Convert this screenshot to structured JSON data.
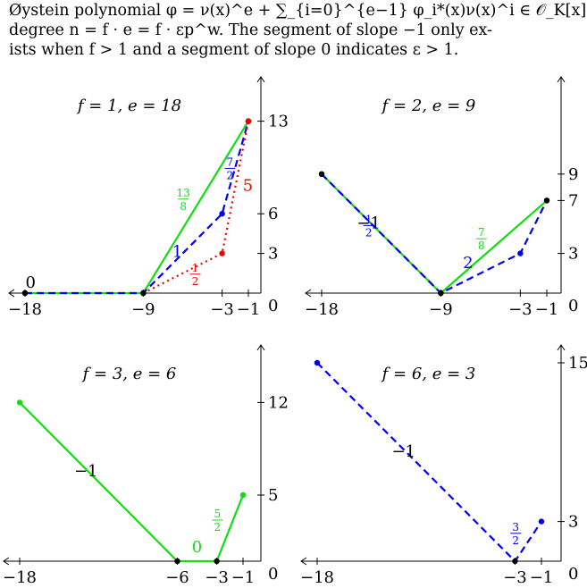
{
  "caption": {
    "line1": "Øystein polynomial φ = ν(x)^e + ∑_{i=0}^{e−1} φ_i*(x)ν(x)^i ∈ 𝒪_K[x] of",
    "line2": "degree n = f · e = f · εp^w. The segment of slope −1 only ex-",
    "line3": "ists when f > 1 and a segment of slope 0 indicates ε > 1."
  },
  "colors": {
    "green": "#11dd11",
    "blue": "#0000ee",
    "red": "#ee0000",
    "black": "#000000"
  },
  "chart_data": [
    {
      "type": "line",
      "title": "f = 1, e = 18",
      "x_ticks": [
        -18,
        -9,
        -3,
        -1
      ],
      "y_ticks": [
        0,
        3,
        6,
        13
      ],
      "xlim": [
        -18,
        -1
      ],
      "ylim": [
        0,
        13
      ],
      "series": [
        {
          "color": "green",
          "style": "solid",
          "points": [
            [
              -18,
              0
            ],
            [
              -9,
              0
            ],
            [
              -1,
              13
            ]
          ],
          "slope_labels": [
            "0",
            "13/8"
          ]
        },
        {
          "color": "blue",
          "style": "dashed",
          "points": [
            [
              -18,
              0
            ],
            [
              -9,
              0
            ],
            [
              -3,
              6
            ],
            [
              -1,
              13
            ]
          ],
          "slope_labels": [
            "1",
            "7/2"
          ]
        },
        {
          "color": "red",
          "style": "dotted",
          "points": [
            [
              -9,
              0
            ],
            [
              -3,
              3
            ],
            [
              -1,
              13
            ]
          ],
          "slope_labels": [
            "1/2",
            "5"
          ]
        }
      ]
    },
    {
      "type": "line",
      "title": "f = 2, e = 9",
      "x_ticks": [
        -18,
        -9,
        -3,
        -1
      ],
      "y_ticks": [
        0,
        3,
        7,
        9
      ],
      "xlim": [
        -18,
        -1
      ],
      "ylim": [
        0,
        9
      ],
      "series": [
        {
          "color": "green",
          "style": "solid",
          "points": [
            [
              -18,
              9
            ],
            [
              -9,
              0
            ],
            [
              -1,
              7
            ]
          ],
          "slope_labels": [
            "−1",
            "7/8"
          ]
        },
        {
          "color": "blue",
          "style": "dashed",
          "points": [
            [
              -18,
              9
            ],
            [
              -9,
              0
            ],
            [
              -3,
              3
            ],
            [
              -1,
              7
            ]
          ],
          "slope_labels": [
            "1/2",
            "2"
          ]
        }
      ]
    },
    {
      "type": "line",
      "title": "f = 3, e = 6",
      "x_ticks": [
        -18,
        -6,
        -3,
        -1
      ],
      "y_ticks": [
        0,
        5,
        12
      ],
      "xlim": [
        -18,
        -1
      ],
      "ylim": [
        0,
        12
      ],
      "series": [
        {
          "color": "green",
          "style": "solid",
          "points": [
            [
              -18,
              12
            ],
            [
              -6,
              0
            ],
            [
              -3,
              0
            ],
            [
              -1,
              5
            ]
          ],
          "slope_labels": [
            "−1",
            "0",
            "5/2"
          ]
        }
      ]
    },
    {
      "type": "line",
      "title": "f = 6, e = 3",
      "x_ticks": [
        -18,
        -3,
        -1
      ],
      "y_ticks": [
        0,
        3,
        15
      ],
      "xlim": [
        -18,
        -1
      ],
      "ylim": [
        0,
        15
      ],
      "series": [
        {
          "color": "blue",
          "style": "dashed",
          "points": [
            [
              -18,
              15
            ],
            [
              -3,
              0
            ],
            [
              -1,
              3
            ]
          ],
          "slope_labels": [
            "−1",
            "3/2"
          ]
        }
      ]
    }
  ]
}
